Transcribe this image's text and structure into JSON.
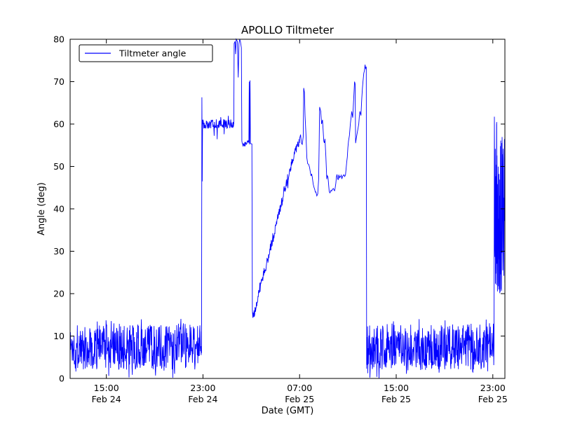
{
  "chart_data": {
    "type": "line",
    "title": "APOLLO Tiltmeter",
    "xlabel": "Date (GMT)",
    "ylabel": "Angle (deg)",
    "xlim": [
      0,
      36
    ],
    "ylim": [
      0,
      80
    ],
    "grid": false,
    "line_color": "#0000ff",
    "legend": {
      "position": "upper left",
      "entries": [
        {
          "label": "Tiltmeter angle",
          "color": "#0000ff"
        }
      ]
    },
    "yticks": [
      {
        "value": 0,
        "label": "0"
      },
      {
        "value": 10,
        "label": "10"
      },
      {
        "value": 20,
        "label": "20"
      },
      {
        "value": 30,
        "label": "30"
      },
      {
        "value": 40,
        "label": "40"
      },
      {
        "value": 50,
        "label": "50"
      },
      {
        "value": 60,
        "label": "60"
      },
      {
        "value": 70,
        "label": "70"
      },
      {
        "value": 80,
        "label": "80"
      }
    ],
    "xticks": [
      {
        "t": 3,
        "time": "15:00",
        "date": "Feb 24"
      },
      {
        "t": 11,
        "time": "23:00",
        "date": "Feb 24"
      },
      {
        "t": 19,
        "time": "07:00",
        "date": "Feb 25"
      },
      {
        "t": 27,
        "time": "15:00",
        "date": "Feb 25"
      },
      {
        "t": 35,
        "time": "23:00",
        "date": "Feb 25"
      }
    ],
    "series_segments": [
      {
        "kind": "noise",
        "t": [
          0,
          10.88
        ],
        "base": [
          7.5,
          7.5
        ],
        "amp": 5.5,
        "step": 0.025
      },
      {
        "kind": "line",
        "jitter": 0,
        "points": [
          [
            10.88,
            6
          ],
          [
            10.91,
            66.3
          ],
          [
            10.94,
            46.5
          ],
          [
            10.97,
            61
          ],
          [
            11.0,
            60
          ]
        ]
      },
      {
        "kind": "noise",
        "t": [
          11.0,
          13.55
        ],
        "base": [
          60,
          60
        ],
        "amp": 1.1,
        "step": 0.025
      },
      {
        "kind": "line",
        "jitter": 0.8,
        "points": [
          [
            13.55,
            60
          ],
          [
            13.58,
            79
          ],
          [
            13.65,
            79.5
          ],
          [
            13.7,
            76.5
          ],
          [
            13.75,
            80
          ],
          [
            13.85,
            79.5
          ],
          [
            13.92,
            71
          ],
          [
            13.98,
            79
          ],
          [
            14.1,
            79.5
          ],
          [
            14.18,
            78
          ],
          [
            14.22,
            56
          ],
          [
            14.26,
            55.3
          ]
        ]
      },
      {
        "kind": "noise",
        "t": [
          14.26,
          14.8
        ],
        "base": [
          55.5,
          55.5
        ],
        "amp": 0.8,
        "step": 0.025
      },
      {
        "kind": "line",
        "jitter": 0,
        "points": [
          [
            14.8,
            55.5
          ],
          [
            14.83,
            70
          ],
          [
            14.86,
            55.2
          ],
          [
            14.9,
            70.3
          ],
          [
            14.93,
            55.4
          ],
          [
            15.05,
            55.3
          ],
          [
            15.09,
            16
          ],
          [
            15.13,
            14.3
          ]
        ]
      },
      {
        "kind": "noise",
        "t": [
          15.13,
          16.6,
          17.8,
          18.6,
          19.0
        ],
        "base": [
          14.3,
          31,
          45,
          53.5,
          56.5
        ],
        "amp": 1.2,
        "step": 0.025
      },
      {
        "kind": "line",
        "jitter": 0.7,
        "points": [
          [
            19.0,
            56.5
          ],
          [
            19.08,
            57.5
          ],
          [
            19.15,
            55.5
          ],
          [
            19.22,
            55.2
          ],
          [
            19.3,
            57
          ],
          [
            19.34,
            68.5
          ],
          [
            19.4,
            67.5
          ],
          [
            19.45,
            62
          ],
          [
            19.52,
            58
          ],
          [
            19.6,
            52
          ],
          [
            19.75,
            50.5
          ],
          [
            19.9,
            48.5
          ],
          [
            20.05,
            47.5
          ],
          [
            20.2,
            45
          ],
          [
            20.35,
            44
          ],
          [
            20.5,
            43.5
          ],
          [
            20.58,
            47
          ],
          [
            20.62,
            55
          ],
          [
            20.66,
            64
          ],
          [
            20.75,
            63
          ],
          [
            20.82,
            60
          ],
          [
            20.9,
            61
          ],
          [
            21.0,
            56
          ],
          [
            21.1,
            56.5
          ],
          [
            21.25,
            47
          ],
          [
            21.35,
            47.5
          ],
          [
            21.45,
            44.2
          ],
          [
            21.7,
            44.5
          ],
          [
            21.95,
            45
          ],
          [
            22.05,
            47.6
          ],
          [
            22.3,
            47.3
          ],
          [
            22.6,
            47.8
          ],
          [
            22.8,
            48
          ],
          [
            22.9,
            51
          ],
          [
            23.05,
            56
          ],
          [
            23.2,
            60
          ],
          [
            23.32,
            63
          ],
          [
            23.4,
            61.5
          ],
          [
            23.48,
            66
          ],
          [
            23.55,
            70
          ],
          [
            23.6,
            69.5
          ],
          [
            23.64,
            55.5
          ],
          [
            23.75,
            57.5
          ],
          [
            23.9,
            60
          ],
          [
            24.0,
            63
          ],
          [
            24.08,
            62
          ],
          [
            24.15,
            66
          ],
          [
            24.25,
            70
          ],
          [
            24.32,
            72
          ],
          [
            24.42,
            74
          ],
          [
            24.47,
            73
          ],
          [
            24.52,
            73.5
          ],
          [
            24.55,
            9
          ]
        ]
      },
      {
        "kind": "noise",
        "t": [
          24.55,
          35.1
        ],
        "base": [
          7.5,
          7.5
        ],
        "amp": 5.5,
        "step": 0.025
      },
      {
        "kind": "line",
        "jitter": 0,
        "points": [
          [
            35.1,
            8
          ],
          [
            35.13,
            61
          ]
        ]
      },
      {
        "kind": "noise",
        "t": [
          35.13,
          36.0
        ],
        "base": [
          40.5,
          40.5
        ],
        "amp": 20.5,
        "step": 0.012
      }
    ]
  }
}
